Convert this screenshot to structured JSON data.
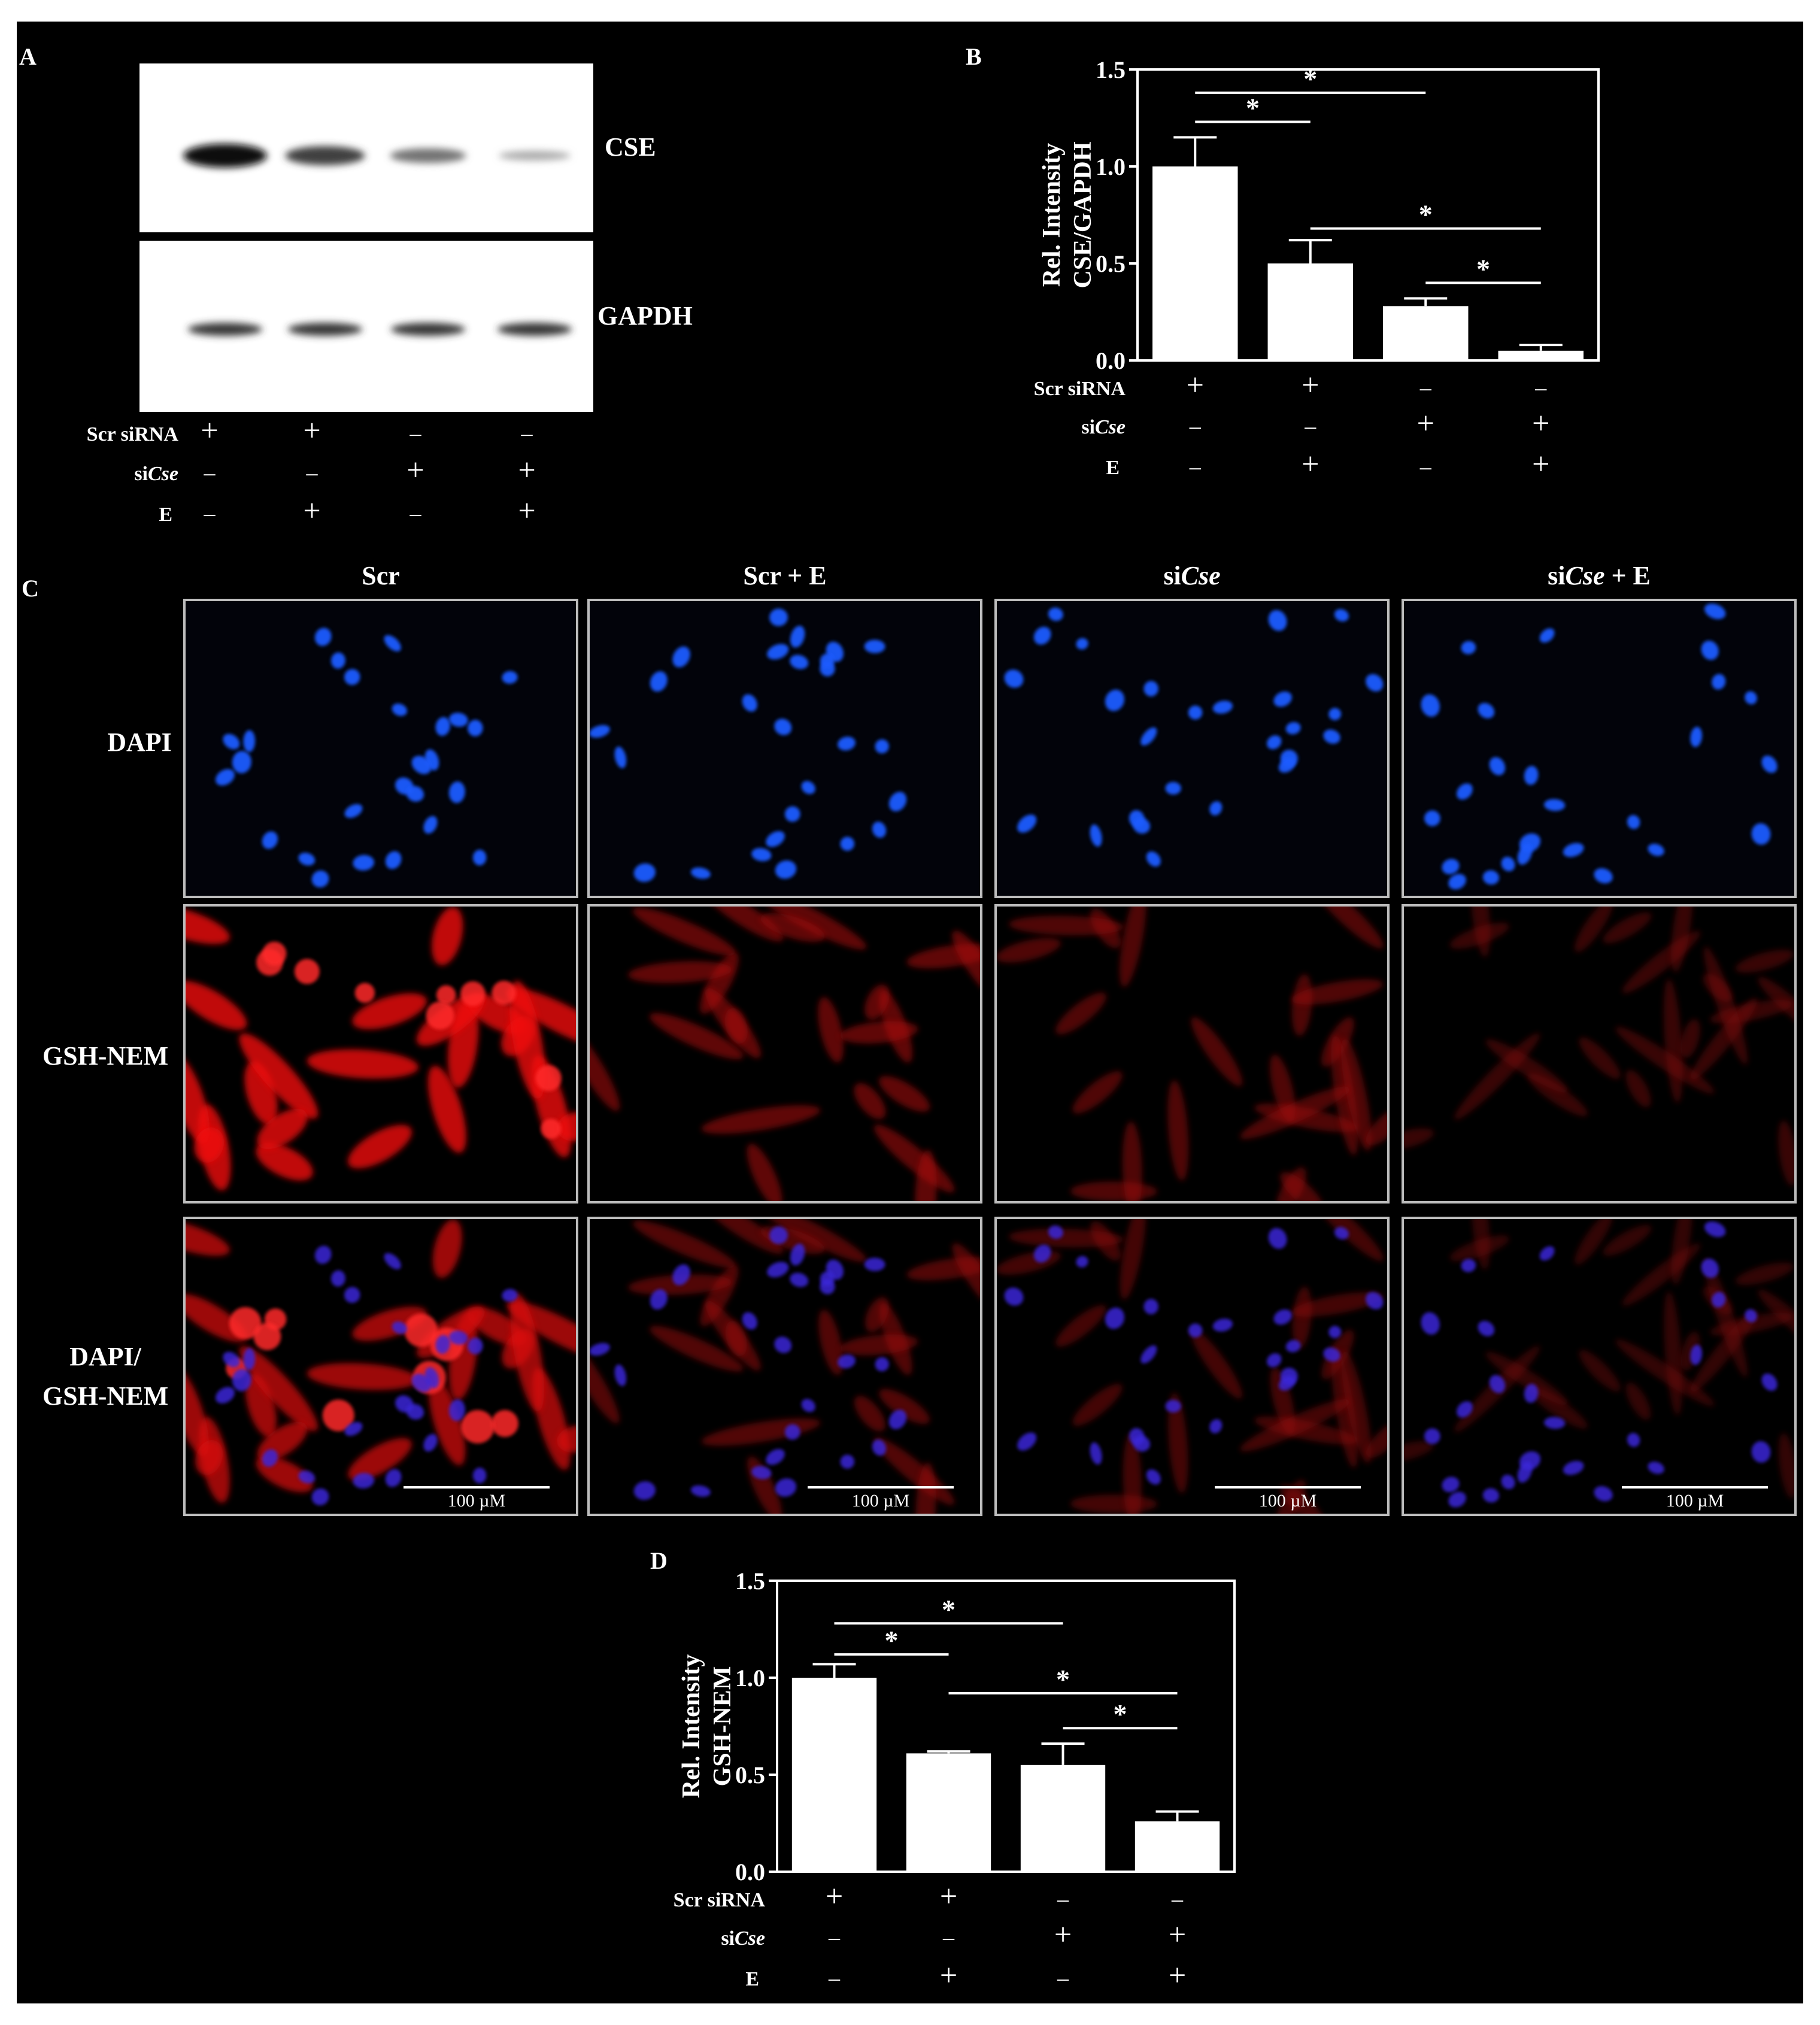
{
  "panels": {
    "A": "A",
    "B": "B",
    "C": "C",
    "D": "D"
  },
  "blot": {
    "cse_label": "CSE",
    "gapdh_label": "GAPDH",
    "cse_band_intensity": [
      1.0,
      0.72,
      0.45,
      0.15
    ],
    "gapdh_band_intensity": [
      0.8,
      0.8,
      0.8,
      0.8
    ]
  },
  "conditions": {
    "scr_sirna": "Scr siRNA",
    "sicse_prefix": "si",
    "sicse_italic": "Cse",
    "e": "E",
    "scr_values": [
      "+",
      "+",
      "–",
      "–"
    ],
    "sicse_values": [
      "–",
      "–",
      "+",
      "+"
    ],
    "e_values": [
      "–",
      "+",
      "–",
      "+"
    ]
  },
  "micro": {
    "col_headers": [
      {
        "prefix": "Scr",
        "italic": "",
        "suffix": ""
      },
      {
        "prefix": "Scr + E",
        "italic": "",
        "suffix": ""
      },
      {
        "prefix": "si",
        "italic": "Cse",
        "suffix": ""
      },
      {
        "prefix": "si",
        "italic": "Cse",
        "suffix": " + E"
      }
    ],
    "row_labels": [
      "DAPI",
      "GSH-NEM",
      "DAPI/",
      "GSH-NEM"
    ],
    "scale_bar": "100 µM",
    "colors": {
      "dapi": "#1a5cff",
      "gsh": "#e01818",
      "merge_nuclei": "#3a26d8"
    }
  },
  "chart_data": [
    {
      "panel": "B",
      "type": "bar",
      "ylabel": "Rel. Intensity CSE/GAPDH",
      "ylabel_lines": [
        "Rel. Intensity",
        "CSE/GAPDH"
      ],
      "ylim": [
        0,
        1.5
      ],
      "yticks": [
        "0.0",
        "0.5",
        "1.0",
        "1.5"
      ],
      "values": [
        1.0,
        0.5,
        0.28,
        0.05
      ],
      "errors": [
        0.15,
        0.12,
        0.04,
        0.03
      ],
      "significance": "*"
    },
    {
      "panel": "D",
      "type": "bar",
      "ylabel": "Rel. Intensity GSH-NEM",
      "ylabel_lines": [
        "Rel. Intensity",
        "GSH-NEM"
      ],
      "ylim": [
        0,
        1.5
      ],
      "yticks": [
        "0.0",
        "0.5",
        "1.0",
        "1.5"
      ],
      "values": [
        1.0,
        0.61,
        0.55,
        0.26
      ],
      "errors": [
        0.07,
        0.01,
        0.11,
        0.05
      ],
      "significance": "*"
    }
  ]
}
